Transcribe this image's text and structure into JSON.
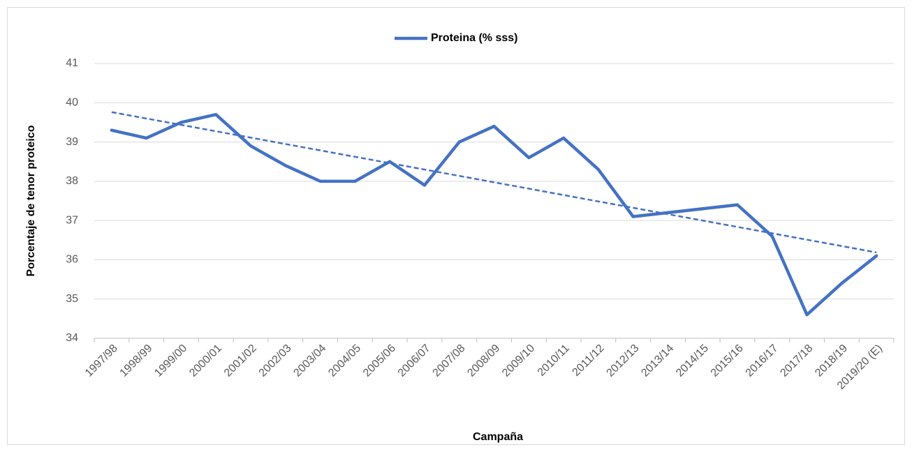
{
  "chart_data": {
    "type": "line",
    "x_label": "Campaña",
    "y_label": "Porcentaje de tenor proteico",
    "categories": [
      "1997/98",
      "1998/99",
      "1999/00",
      "2000/01",
      "2001/02",
      "2002/03",
      "2003/04",
      "2004/05",
      "2005/06",
      "2006/07",
      "2007/08",
      "2008/09",
      "2009/10",
      "2010/11",
      "2011/12",
      "2012/13",
      "2013/14",
      "2014/15",
      "2015/16",
      "2016/17",
      "2017/18",
      "2018/19",
      "2019/20 (E)"
    ],
    "series": [
      {
        "name": "Proteina (% sss)",
        "color": "#4472c4",
        "values": [
          39.3,
          39.1,
          39.5,
          39.7,
          38.9,
          38.4,
          38.0,
          38.0,
          38.5,
          37.9,
          39.0,
          39.4,
          38.6,
          39.1,
          38.3,
          37.1,
          37.2,
          37.3,
          37.4,
          36.6,
          34.6,
          35.4,
          36.1
        ]
      }
    ],
    "ylim": [
      34,
      41
    ],
    "yticks": [
      34,
      35,
      36,
      37,
      38,
      39,
      40,
      41
    ],
    "grid": true,
    "legend": "top",
    "trendline": true
  }
}
